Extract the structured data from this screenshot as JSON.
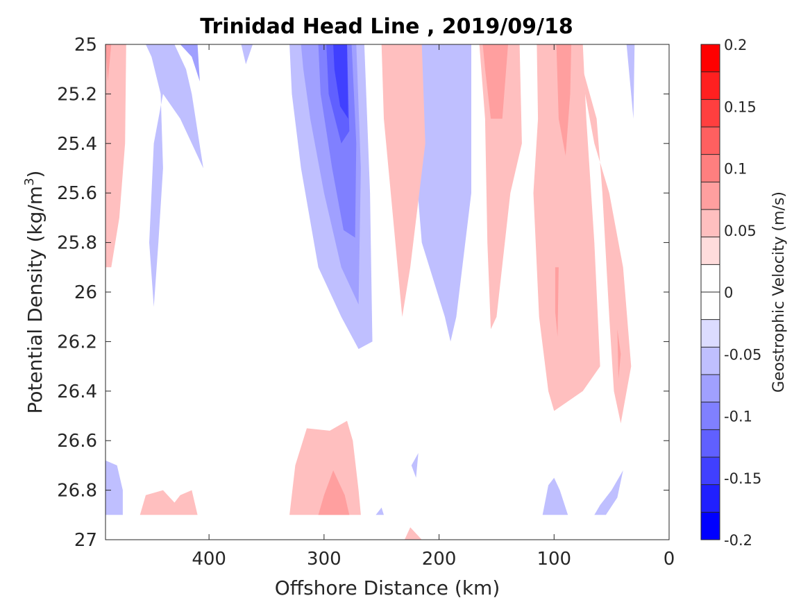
{
  "chart_data": {
    "type": "contour",
    "title": "Trinidad Head Line , 2019/09/18",
    "xlabel": "Offshore Distance (km)",
    "ylabel": "Potential Density (kg/m",
    "ylabel_superscript": "3",
    "ylabel_suffix": ")",
    "xlim": [
      490,
      0
    ],
    "ylim": [
      25,
      27
    ],
    "y_reversed": true,
    "grid": false,
    "x_ticks": [
      400,
      300,
      200,
      100,
      0
    ],
    "x_tick_labels": [
      "400",
      "300",
      "200",
      "100",
      "0"
    ],
    "y_ticks": [
      25,
      25.2,
      25.4,
      25.6,
      25.8,
      26,
      26.2,
      26.4,
      26.6,
      26.8,
      27
    ],
    "y_tick_labels": [
      "25",
      "25.2",
      "25.4",
      "25.6",
      "25.8",
      "26",
      "26.2",
      "26.4",
      "26.6",
      "26.8",
      "27"
    ],
    "colorbar": {
      "label": "Geostrophic Velocity (m/s)",
      "range": [
        -0.2,
        0.2
      ],
      "levels": [
        -0.2,
        -0.175,
        -0.15,
        -0.125,
        -0.1,
        -0.075,
        -0.05,
        -0.025,
        0,
        0.025,
        0.05,
        0.075,
        0.1,
        0.125,
        0.15,
        0.175,
        0.2
      ],
      "colors": [
        "#0000ff",
        "#2020ff",
        "#4040ff",
        "#6060ff",
        "#8080ff",
        "#a0a0ff",
        "#bfbfff",
        "#dcdcff",
        "#ffffff",
        "#ffffff",
        "#ffdcdc",
        "#ffbfbf",
        "#ff9f9f",
        "#ff7f7f",
        "#ff6060",
        "#ff3f3f",
        "#ff2020",
        "#ff0000"
      ],
      "tick_values": [
        -0.2,
        -0.15,
        -0.1,
        -0.05,
        0,
        0.05,
        0.1,
        0.15,
        0.2
      ],
      "tick_labels": [
        "-0.2",
        "-0.15",
        "-0.1",
        "-0.05",
        "0",
        "0.05",
        "0.1",
        "0.15",
        "0.2"
      ]
    },
    "regions": [
      {
        "name": "neg-west-band",
        "level": -0.05,
        "points": [
          [
            455,
            25
          ],
          [
            430,
            25
          ],
          [
            420,
            25.1
          ],
          [
            415,
            25.2
          ],
          [
            410,
            25.35
          ],
          [
            405,
            25.5
          ],
          [
            425,
            25.3
          ],
          [
            440,
            25.2
          ],
          [
            448,
            25.4
          ],
          [
            452,
            25.8
          ],
          [
            448,
            26.06
          ],
          [
            444,
            25.8
          ],
          [
            440,
            25.5
          ],
          [
            442,
            25.2
          ],
          [
            450,
            25.05
          ]
        ]
      },
      {
        "name": "neg-west-core",
        "level": -0.075,
        "points": [
          [
            425,
            25
          ],
          [
            410,
            25
          ],
          [
            408,
            25.15
          ],
          [
            415,
            25.05
          ]
        ]
      },
      {
        "name": "neg-small-370",
        "level": -0.05,
        "points": [
          [
            372,
            25
          ],
          [
            362,
            25
          ],
          [
            368,
            25.08
          ]
        ]
      },
      {
        "name": "neg-jet-outer",
        "level": -0.05,
        "points": [
          [
            330,
            25
          ],
          [
            265,
            25
          ],
          [
            260,
            25.6
          ],
          [
            258,
            26.2
          ],
          [
            270,
            26.23
          ],
          [
            285,
            26.1
          ],
          [
            305,
            25.9
          ],
          [
            320,
            25.5
          ],
          [
            328,
            25.2
          ]
        ]
      },
      {
        "name": "neg-jet-1",
        "level": -0.075,
        "points": [
          [
            320,
            25
          ],
          [
            272,
            25
          ],
          [
            268,
            25.5
          ],
          [
            270,
            26.05
          ],
          [
            285,
            25.9
          ],
          [
            300,
            25.6
          ],
          [
            312,
            25.3
          ],
          [
            318,
            25.1
          ]
        ]
      },
      {
        "name": "neg-jet-2",
        "level": -0.1,
        "points": [
          [
            305,
            25
          ],
          [
            276,
            25
          ],
          [
            272,
            25.4
          ],
          [
            273,
            25.78
          ],
          [
            283,
            25.75
          ],
          [
            293,
            25.5
          ],
          [
            303,
            25.2
          ]
        ]
      },
      {
        "name": "neg-jet-3",
        "level": -0.125,
        "points": [
          [
            298,
            25
          ],
          [
            280,
            25
          ],
          [
            278,
            25.35
          ],
          [
            285,
            25.4
          ],
          [
            296,
            25.2
          ]
        ]
      },
      {
        "name": "neg-jet-core",
        "level": -0.15,
        "points": [
          [
            292,
            25
          ],
          [
            280,
            25
          ],
          [
            279,
            25.3
          ],
          [
            286,
            25.25
          ],
          [
            291,
            25.1
          ]
        ]
      },
      {
        "name": "neg-band-200",
        "level": -0.05,
        "points": [
          [
            222,
            25
          ],
          [
            172,
            25
          ],
          [
            172,
            25.6
          ],
          [
            185,
            26.1
          ],
          [
            190,
            26.2
          ],
          [
            195,
            26.1
          ],
          [
            215,
            25.8
          ],
          [
            222,
            25.4
          ]
        ]
      },
      {
        "name": "neg-small-220",
        "level": -0.05,
        "points": [
          [
            224,
            26.7
          ],
          [
            218,
            26.65
          ],
          [
            220,
            26.75
          ]
        ]
      },
      {
        "name": "neg-deep-west",
        "level": -0.05,
        "points": [
          [
            490,
            26.68
          ],
          [
            480,
            26.7
          ],
          [
            475,
            26.8
          ],
          [
            475,
            26.9
          ],
          [
            490,
            26.9
          ]
        ]
      },
      {
        "name": "neg-deep-250",
        "level": -0.05,
        "points": [
          [
            255,
            26.9
          ],
          [
            250,
            26.87
          ],
          [
            248,
            26.9
          ]
        ]
      },
      {
        "name": "neg-deep-100",
        "level": -0.05,
        "points": [
          [
            110,
            26.9
          ],
          [
            105,
            26.78
          ],
          [
            100,
            26.75
          ],
          [
            95,
            26.8
          ],
          [
            88,
            26.9
          ]
        ]
      },
      {
        "name": "neg-deep-50",
        "level": -0.05,
        "points": [
          [
            65,
            26.9
          ],
          [
            60,
            26.86
          ],
          [
            50,
            26.8
          ],
          [
            40,
            26.72
          ],
          [
            45,
            26.83
          ],
          [
            55,
            26.9
          ]
        ]
      },
      {
        "name": "neg-small-35",
        "level": -0.05,
        "points": [
          [
            37,
            25
          ],
          [
            30,
            25
          ],
          [
            31,
            25.3
          ],
          [
            35,
            25.1
          ]
        ]
      },
      {
        "name": "pos-west-edge",
        "level": 0.05,
        "points": [
          [
            490,
            25
          ],
          [
            472,
            25
          ],
          [
            473,
            25.4
          ],
          [
            478,
            25.7
          ],
          [
            485,
            25.9
          ],
          [
            490,
            25.9
          ]
        ]
      },
      {
        "name": "pos-west-edge-core",
        "level": 0.075,
        "points": [
          [
            490,
            25
          ],
          [
            485,
            25
          ],
          [
            488,
            25.15
          ]
        ]
      },
      {
        "name": "pos-band-230",
        "level": 0.05,
        "points": [
          [
            250,
            25
          ],
          [
            215,
            25
          ],
          [
            212,
            25.4
          ],
          [
            225,
            25.9
          ],
          [
            232,
            26.1
          ],
          [
            240,
            25.7
          ],
          [
            248,
            25.3
          ]
        ]
      },
      {
        "name": "pos-band-150",
        "level": 0.05,
        "points": [
          [
            165,
            25
          ],
          [
            130,
            25
          ],
          [
            128,
            25.4
          ],
          [
            138,
            25.6
          ],
          [
            150,
            26.1
          ],
          [
            155,
            26.15
          ],
          [
            158,
            25.8
          ],
          [
            160,
            25.3
          ]
        ]
      },
      {
        "name": "pos-band-150-core",
        "level": 0.075,
        "points": [
          [
            162,
            25
          ],
          [
            140,
            25
          ],
          [
            145,
            25.3
          ],
          [
            155,
            25.3
          ],
          [
            160,
            25.1
          ]
        ]
      },
      {
        "name": "pos-band-100",
        "level": 0.05,
        "points": [
          [
            115,
            25
          ],
          [
            75,
            25
          ],
          [
            72,
            25.3
          ],
          [
            65,
            25.8
          ],
          [
            60,
            26.3
          ],
          [
            75,
            26.4
          ],
          [
            100,
            26.48
          ],
          [
            105,
            26.4
          ],
          [
            113,
            26.1
          ],
          [
            118,
            25.6
          ],
          [
            114,
            25.3
          ]
        ]
      },
      {
        "name": "pos-band-100-core",
        "level": 0.075,
        "points": [
          [
            98,
            25
          ],
          [
            85,
            25
          ],
          [
            86,
            25.2
          ],
          [
            90,
            25.45
          ],
          [
            96,
            25.3
          ]
        ]
      },
      {
        "name": "pos-band-100-thread",
        "level": 0.075,
        "points": [
          [
            99,
            25.9
          ],
          [
            96,
            25.9
          ],
          [
            97,
            26.18
          ],
          [
            99,
            26.08
          ]
        ]
      },
      {
        "name": "pos-band-60",
        "level": 0.05,
        "points": [
          [
            75,
            25.1
          ],
          [
            63,
            25.3
          ],
          [
            58,
            25.6
          ],
          [
            52,
            26.1
          ],
          [
            48,
            26.4
          ],
          [
            42,
            26.53
          ],
          [
            33,
            26.3
          ],
          [
            40,
            25.9
          ],
          [
            52,
            25.6
          ],
          [
            65,
            25.4
          ],
          [
            73,
            25.2
          ]
        ]
      },
      {
        "name": "pos-band-60-thread",
        "level": 0.075,
        "points": [
          [
            45,
            26.15
          ],
          [
            42,
            26.25
          ],
          [
            44,
            26.35
          ]
        ]
      },
      {
        "name": "pos-deep-west",
        "level": 0.05,
        "points": [
          [
            460,
            26.9
          ],
          [
            455,
            26.82
          ],
          [
            440,
            26.8
          ],
          [
            430,
            26.85
          ],
          [
            425,
            26.82
          ],
          [
            415,
            26.8
          ],
          [
            410,
            26.9
          ]
        ]
      },
      {
        "name": "pos-deep-300",
        "level": 0.05,
        "points": [
          [
            330,
            26.9
          ],
          [
            325,
            26.7
          ],
          [
            315,
            26.55
          ],
          [
            295,
            26.56
          ],
          [
            280,
            26.52
          ],
          [
            275,
            26.6
          ],
          [
            270,
            26.8
          ],
          [
            268,
            26.9
          ]
        ]
      },
      {
        "name": "pos-deep-300-core",
        "level": 0.075,
        "points": [
          [
            305,
            26.9
          ],
          [
            300,
            26.82
          ],
          [
            292,
            26.72
          ],
          [
            282,
            26.82
          ],
          [
            278,
            26.9
          ]
        ]
      },
      {
        "name": "pos-deep-220",
        "level": 0.05,
        "points": [
          [
            230,
            27
          ],
          [
            225,
            26.95
          ],
          [
            215,
            27
          ]
        ]
      }
    ]
  }
}
